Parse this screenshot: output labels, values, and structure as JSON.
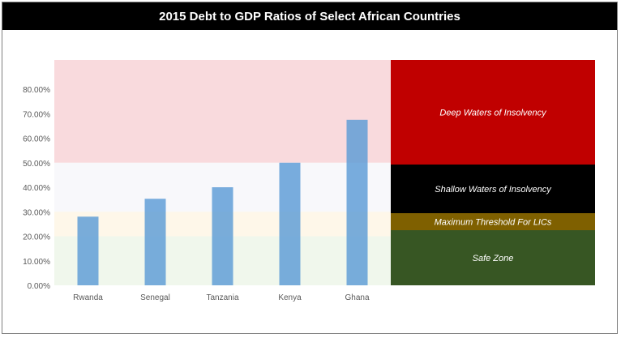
{
  "chart_data": {
    "type": "bar",
    "title": "2015 Debt to GDP Ratios of Select African Countries",
    "xlabel": "",
    "ylabel": "",
    "categories": [
      "Rwanda",
      "Senegal",
      "Tanzania",
      "Kenya",
      "Ghana"
    ],
    "values": [
      28.0,
      35.3,
      40.0,
      50.0,
      67.5
    ],
    "ylim": [
      0,
      90
    ],
    "yticks": [
      0,
      10,
      20,
      30,
      40,
      50,
      60,
      70,
      80
    ],
    "ytick_labels": [
      "0.00%",
      "10.00%",
      "20.00%",
      "30.00%",
      "40.00%",
      "50.00%",
      "60.00%",
      "70.00%",
      "80.00%"
    ],
    "grid": false,
    "bar_color": "#5b9bd5",
    "zones": [
      {
        "label": "Deep Waters of Insolvency",
        "from": 50,
        "to": 92,
        "band_color": "#f4b6bb",
        "label_color": "#c00000"
      },
      {
        "label": "Shallow Waters of Insolvency",
        "from": 30,
        "to": 50,
        "band_color": "#f2f2f7",
        "label_color": "#000000"
      },
      {
        "label": "Maximum Threshold For LICs",
        "from": 20,
        "to": 30,
        "band_color": "#fdf0d4",
        "label_color": "#7f6000"
      },
      {
        "label": "Safe Zone",
        "from": 0,
        "to": 20,
        "band_color": "#e2efda",
        "label_color": "#375623"
      }
    ]
  }
}
